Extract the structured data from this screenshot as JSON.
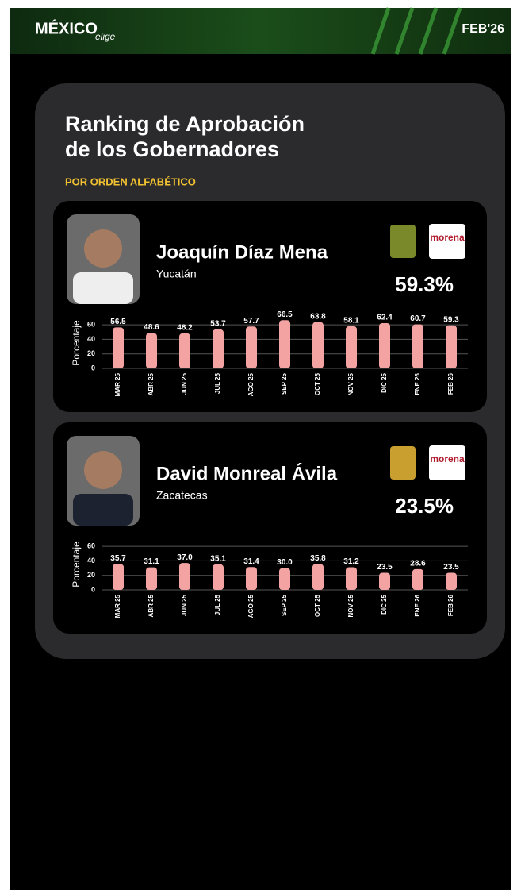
{
  "header": {
    "brand": "MÉXICO",
    "brand_sub": "elige",
    "date": "FEB'26"
  },
  "title": [
    "Ranking de Aprobación",
    "de los Gobernadores"
  ],
  "subtitle": "POR ORDEN ALFABÉTICO",
  "chart_data": [
    {
      "type": "bar",
      "title": "Joaquín Díaz Mena",
      "subtitle": "Yucatán",
      "current_value_label": "59.3%",
      "party": "morena",
      "y_label": "Porcentaje",
      "categories": [
        "MAR 25",
        "ABR 25",
        "JUN 25",
        "JUL 25",
        "AGO 25",
        "SEP 25",
        "OCT 25",
        "NOV 25",
        "DIC 25",
        "ENE 26",
        "FEB 26"
      ],
      "values": [
        56.5,
        48.6,
        48.2,
        53.7,
        57.7,
        66.5,
        63.8,
        58.1,
        62.4,
        60.7,
        59.3
      ],
      "color": "#f4a3a3",
      "ylim": [
        0,
        70
      ],
      "yticks": [
        0,
        20,
        40,
        60
      ],
      "grid": true
    },
    {
      "type": "bar",
      "title": "David Monreal Ávila",
      "subtitle": "Zacatecas",
      "current_value_label": "23.5%",
      "party": "morena",
      "y_label": "Porcentaje",
      "categories": [
        "MAR 25",
        "ABR 25",
        "JUN 25",
        "JUL 25",
        "AGO 25",
        "SEP 25",
        "OCT 25",
        "NOV 25",
        "DIC 25",
        "ENE 26",
        "FEB 26"
      ],
      "values": [
        35.7,
        31.1,
        37.0,
        35.1,
        31.4,
        30.0,
        35.8,
        31.2,
        23.5,
        28.6,
        23.5
      ],
      "value_labels": [
        "35.7",
        "31.1",
        "37.0",
        "35.1",
        "31.4",
        "30.0",
        "35.8",
        "31.2",
        "23.5",
        "28.6",
        "23.5"
      ],
      "color": "#f4a3a3",
      "ylim": [
        0,
        70
      ],
      "yticks": [
        0,
        20,
        40,
        60
      ],
      "grid": true
    }
  ]
}
